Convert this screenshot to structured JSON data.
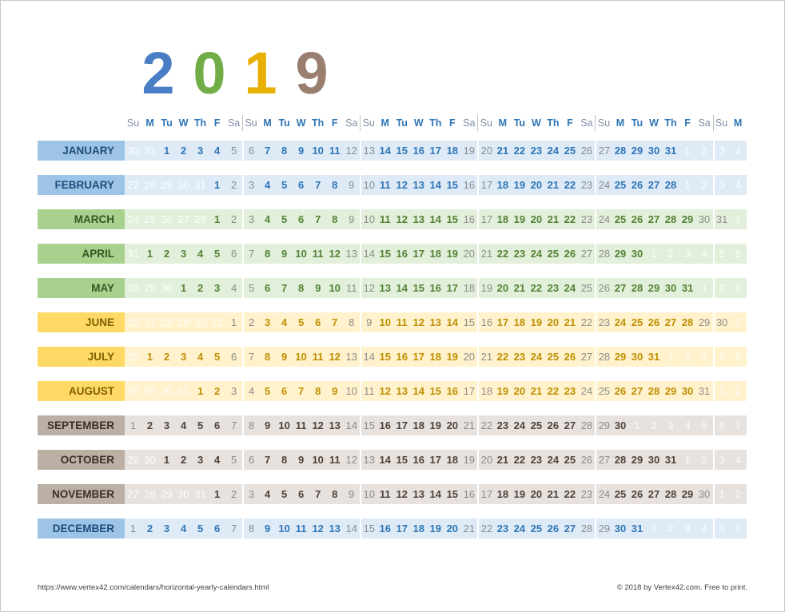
{
  "title": {
    "digits": [
      "2",
      "0",
      "1",
      "9"
    ],
    "colors": [
      "#4a7ec4",
      "#70ad47",
      "#e8b000",
      "#9a7e70"
    ]
  },
  "weekday_headers": [
    "Su",
    "M",
    "Tu",
    "W",
    "Th",
    "F",
    "Sa",
    "Su",
    "M",
    "Tu",
    "W",
    "Th",
    "F",
    "Sa",
    "Su",
    "M",
    "Tu",
    "W",
    "Th",
    "F",
    "Sa",
    "Su",
    "M",
    "Tu",
    "W",
    "Th",
    "F",
    "Sa",
    "Su",
    "M",
    "Tu",
    "W",
    "Th",
    "F",
    "Sa",
    "Su",
    "M"
  ],
  "themes": {
    "blue": {
      "label_bg": "#9dc3e6",
      "label_fg": "#1f4e79",
      "row_bg": "#deebf7",
      "day_fg": "#2e75b6"
    },
    "green": {
      "label_bg": "#a9d18e",
      "label_fg": "#375623",
      "row_bg": "#e2efda",
      "day_fg": "#548235"
    },
    "yellow": {
      "label_bg": "#ffd966",
      "label_fg": "#7f6000",
      "row_bg": "#fff2cc",
      "day_fg": "#bf8f00"
    },
    "taupe": {
      "label_bg": "#bcafa4",
      "label_fg": "#3b3129",
      "row_bg": "#e7e2de",
      "day_fg": "#4f423a"
    }
  },
  "months": [
    {
      "label": "JANUARY",
      "theme": "blue",
      "start": 2,
      "length": 31,
      "days": [
        30,
        31,
        1,
        2,
        3,
        4,
        5,
        6,
        7,
        8,
        9,
        10,
        11,
        12,
        13,
        14,
        15,
        16,
        17,
        18,
        19,
        20,
        21,
        22,
        23,
        24,
        25,
        26,
        27,
        28,
        29,
        30,
        31,
        1,
        2,
        3,
        4
      ]
    },
    {
      "label": "FEBRUARY",
      "theme": "blue",
      "start": 5,
      "length": 28,
      "days": [
        27,
        28,
        29,
        30,
        31,
        1,
        2,
        3,
        4,
        5,
        6,
        7,
        8,
        9,
        10,
        11,
        12,
        13,
        14,
        15,
        16,
        17,
        18,
        19,
        20,
        21,
        22,
        23,
        24,
        25,
        26,
        27,
        28,
        1,
        2,
        3,
        4
      ]
    },
    {
      "label": "MARCH",
      "theme": "green",
      "start": 5,
      "length": 31,
      "days": [
        24,
        25,
        26,
        27,
        28,
        1,
        2,
        3,
        4,
        5,
        6,
        7,
        8,
        9,
        10,
        11,
        12,
        13,
        14,
        15,
        16,
        17,
        18,
        19,
        20,
        21,
        22,
        23,
        24,
        25,
        26,
        27,
        28,
        29,
        30,
        31,
        1
      ]
    },
    {
      "label": "APRIL",
      "theme": "green",
      "start": 1,
      "length": 30,
      "days": [
        31,
        1,
        2,
        3,
        4,
        5,
        6,
        7,
        8,
        9,
        10,
        11,
        12,
        13,
        14,
        15,
        16,
        17,
        18,
        19,
        20,
        21,
        22,
        23,
        24,
        25,
        26,
        27,
        28,
        29,
        30,
        1,
        2,
        3,
        4,
        5,
        6
      ]
    },
    {
      "label": "MAY",
      "theme": "green",
      "start": 3,
      "length": 31,
      "days": [
        28,
        29,
        30,
        1,
        2,
        3,
        4,
        5,
        6,
        7,
        8,
        9,
        10,
        11,
        12,
        13,
        14,
        15,
        16,
        17,
        18,
        19,
        20,
        21,
        22,
        23,
        24,
        25,
        26,
        27,
        28,
        29,
        30,
        31,
        1,
        2,
        3
      ]
    },
    {
      "label": "JUNE",
      "theme": "yellow",
      "start": 6,
      "length": 30,
      "days": [
        26,
        27,
        28,
        29,
        30,
        31,
        1,
        2,
        3,
        4,
        5,
        6,
        7,
        8,
        9,
        10,
        11,
        12,
        13,
        14,
        15,
        16,
        17,
        18,
        19,
        20,
        21,
        22,
        23,
        24,
        25,
        26,
        27,
        28,
        29,
        30,
        1
      ]
    },
    {
      "label": "JULY",
      "theme": "yellow",
      "start": 1,
      "length": 31,
      "days": [
        30,
        1,
        2,
        3,
        4,
        5,
        6,
        7,
        8,
        9,
        10,
        11,
        12,
        13,
        14,
        15,
        16,
        17,
        18,
        19,
        20,
        21,
        22,
        23,
        24,
        25,
        26,
        27,
        28,
        29,
        30,
        31,
        1,
        2,
        3,
        4,
        5
      ]
    },
    {
      "label": "AUGUST",
      "theme": "yellow",
      "start": 4,
      "length": 31,
      "days": [
        28,
        29,
        30,
        31,
        1,
        2,
        3,
        4,
        5,
        6,
        7,
        8,
        9,
        10,
        11,
        12,
        13,
        14,
        15,
        16,
        17,
        18,
        19,
        20,
        21,
        22,
        23,
        24,
        25,
        26,
        27,
        28,
        29,
        30,
        31,
        1,
        2
      ]
    },
    {
      "label": "SEPTEMBER",
      "theme": "taupe",
      "start": 0,
      "length": 30,
      "days": [
        1,
        2,
        3,
        4,
        5,
        6,
        7,
        8,
        9,
        10,
        11,
        12,
        13,
        14,
        15,
        16,
        17,
        18,
        19,
        20,
        21,
        22,
        23,
        24,
        25,
        26,
        27,
        28,
        29,
        30,
        1,
        2,
        3,
        4,
        5,
        6,
        7
      ]
    },
    {
      "label": "OCTOBER",
      "theme": "taupe",
      "start": 2,
      "length": 31,
      "days": [
        29,
        30,
        1,
        2,
        3,
        4,
        5,
        6,
        7,
        8,
        9,
        10,
        11,
        12,
        13,
        14,
        15,
        16,
        17,
        18,
        19,
        20,
        21,
        22,
        23,
        24,
        25,
        26,
        27,
        28,
        29,
        30,
        31,
        1,
        2,
        3,
        4
      ]
    },
    {
      "label": "NOVEMBER",
      "theme": "taupe",
      "start": 5,
      "length": 30,
      "days": [
        27,
        28,
        29,
        30,
        31,
        1,
        2,
        3,
        4,
        5,
        6,
        7,
        8,
        9,
        10,
        11,
        12,
        13,
        14,
        15,
        16,
        17,
        18,
        19,
        20,
        21,
        22,
        23,
        24,
        25,
        26,
        27,
        28,
        29,
        30,
        1,
        2
      ]
    },
    {
      "label": "DECEMBER",
      "theme": "blue",
      "start": 0,
      "length": 31,
      "days": [
        1,
        2,
        3,
        4,
        5,
        6,
        7,
        8,
        9,
        10,
        11,
        12,
        13,
        14,
        15,
        16,
        17,
        18,
        19,
        20,
        21,
        22,
        23,
        24,
        25,
        26,
        27,
        28,
        29,
        30,
        31,
        1,
        2,
        3,
        4,
        5,
        6
      ]
    }
  ],
  "footer": {
    "url": "https://www.vertex42.com/calendars/horizontal-yearly-calendars.html",
    "copyright": "© 2018 by Vertex42.com. Free to print."
  }
}
